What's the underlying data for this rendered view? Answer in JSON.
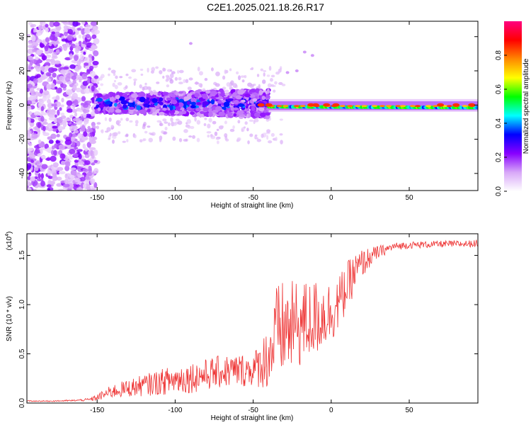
{
  "page_title": "C2E1.2025.021.18.26.R17",
  "chart_data": [
    {
      "type": "heatmap",
      "title": "C2E1.2025.021.18.26.R17",
      "xlabel": "Height of straight line (km)",
      "ylabel": "Frequency (Hz)",
      "xlim": [
        -195,
        94
      ],
      "ylim": [
        -50,
        49
      ],
      "xticks": [
        -150,
        -100,
        -50,
        0,
        50
      ],
      "xtick_labels": [
        "-150",
        "-100",
        "-50",
        "0",
        "50"
      ],
      "yticks": [
        -40,
        -20,
        0,
        20,
        40
      ],
      "ytick_labels": [
        "-40",
        "-20",
        "0",
        "20",
        "40"
      ],
      "colorbar": {
        "label": "Normalized spectral amplitude",
        "range": [
          0,
          1
        ],
        "ticks": [
          0.0,
          0.2,
          0.4,
          0.6,
          0.8
        ],
        "tick_labels": [
          "0.0",
          "0.2",
          "0.4",
          "0.6",
          "0.8"
        ],
        "colors": [
          "#ffffff",
          "#d8a8f8",
          "#8800ff",
          "#0000ff",
          "#00ffff",
          "#00ff00",
          "#ffff00",
          "#ff8800",
          "#ff0000",
          "#ff0080"
        ]
      },
      "description_regions": [
        {
          "x_range": [
            -195,
            -150
          ],
          "freq_range": [
            -50,
            49
          ],
          "level": 0.15
        },
        {
          "x_range": [
            -150,
            -40
          ],
          "freq_range": [
            -8,
            10
          ],
          "level": 0.3
        },
        {
          "x_range": [
            -40,
            94
          ],
          "freq_range": [
            -4,
            3
          ],
          "level": 0.55
        }
      ]
    },
    {
      "type": "line",
      "xlabel": "Height of straight line (km)",
      "ylabel": "SNR (10 * v/v)",
      "y_multiplier_label": "(x10",
      "y_multiplier_exp": "4",
      "xlim": [
        -195,
        94
      ],
      "ylim": [
        0,
        17200
      ],
      "xticks": [
        -150,
        -100,
        -50,
        0,
        50
      ],
      "xtick_labels": [
        "-150",
        "-100",
        "-50",
        "0",
        "50"
      ],
      "yticks": [
        0,
        5000,
        10000,
        15000
      ],
      "ytick_labels": [
        "0.0",
        "0.5",
        "1.0",
        "1.5"
      ],
      "series": [
        {
          "name": "SNR",
          "color": "#ee3333",
          "x": [
            -195,
            -180,
            -165,
            -155,
            -150,
            -145,
            -140,
            -130,
            -120,
            -110,
            -100,
            -90,
            -80,
            -70,
            -60,
            -50,
            -45,
            -40,
            -38,
            -35,
            -32,
            -30,
            -25,
            -20,
            -15,
            -10,
            -5,
            0,
            5,
            10,
            15,
            20,
            25,
            30,
            35,
            40,
            50,
            60,
            70,
            80,
            90,
            94
          ],
          "values": [
            200,
            200,
            250,
            350,
            550,
            900,
            1200,
            1500,
            1800,
            2100,
            2400,
            2600,
            2900,
            3200,
            3300,
            3400,
            4000,
            4800,
            5500,
            7000,
            7400,
            7500,
            7700,
            8000,
            8300,
            8600,
            9000,
            9300,
            10200,
            11800,
            13200,
            14200,
            14800,
            15300,
            15600,
            15900,
            16050,
            16100,
            16150,
            16150,
            16200,
            16200
          ],
          "spread": [
            50,
            60,
            80,
            150,
            350,
            500,
            700,
            900,
            1100,
            1300,
            1500,
            1600,
            1600,
            1700,
            1700,
            1700,
            2500,
            3500,
            4000,
            5000,
            5000,
            5000,
            4700,
            4500,
            4200,
            4000,
            3500,
            3200,
            2800,
            2500,
            2000,
            1500,
            1000,
            700,
            500,
            400,
            350,
            350,
            350,
            350,
            350,
            400
          ]
        }
      ]
    }
  ]
}
